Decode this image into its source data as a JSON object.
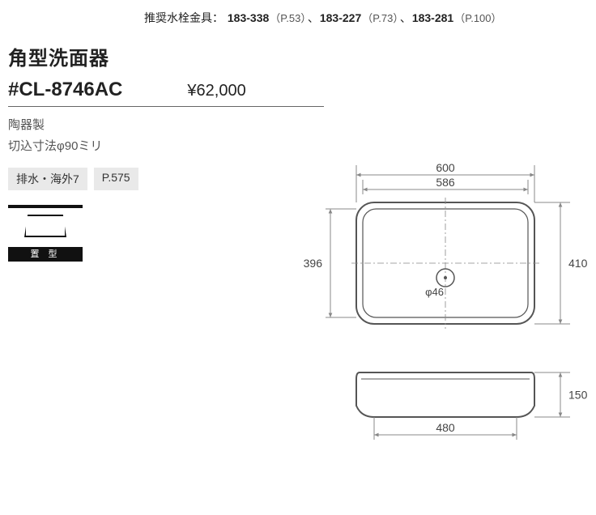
{
  "header": {
    "recommend_label": "推奨水栓金具：",
    "items": [
      {
        "code": "183-338",
        "page": "（P.53）"
      },
      {
        "code": "183-227",
        "page": "（P.73）"
      },
      {
        "code": "183-281",
        "page": "（P.100）"
      }
    ],
    "sep": "、"
  },
  "product": {
    "title": "角型洗面器",
    "model": "#CL-8746AC",
    "price": "¥62,000",
    "spec1": "陶器製",
    "spec2": "切込寸法φ90ミリ"
  },
  "tags": {
    "a": "排水・海外7",
    "b": "P.575"
  },
  "icon": {
    "label": "置 型"
  },
  "drawing": {
    "top": {
      "outer_w": "600",
      "inner_w": "586",
      "outer_h": "410",
      "inner_h": "396",
      "hole": "φ46"
    },
    "side": {
      "height": "150",
      "base_w": "480"
    },
    "style": {
      "stroke": "#555555",
      "thin": "#888888",
      "text_color": "#444444",
      "font_size": 14,
      "outer_rx": 40,
      "inner_rx": 30
    }
  }
}
